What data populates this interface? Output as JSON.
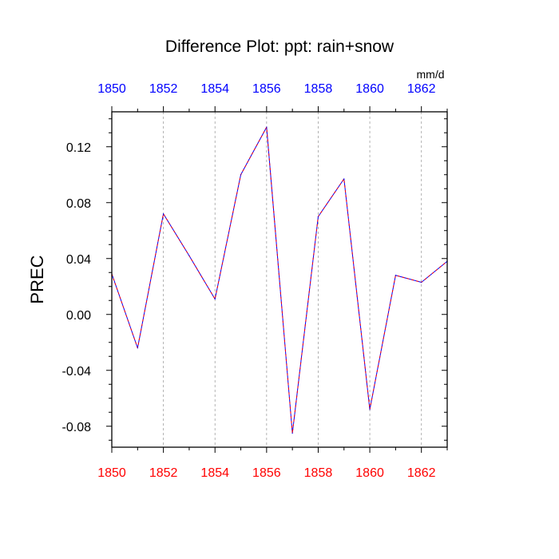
{
  "chart_data": {
    "type": "line",
    "title": "Difference Plot: ppt: rain+snow",
    "units": "mm/d",
    "ylabel": "PREC",
    "xlabel": "",
    "xlim": [
      1850,
      1863
    ],
    "ylim": [
      -0.095,
      0.145
    ],
    "x_ticks": [
      1850,
      1852,
      1854,
      1856,
      1858,
      1860,
      1862
    ],
    "y_ticks": [
      -0.08,
      -0.04,
      0.0,
      0.04,
      0.08,
      0.12
    ],
    "y_tick_labels": [
      "-0.08",
      "-0.04",
      "0.00",
      "0.04",
      "0.08",
      "0.12"
    ],
    "grid": "vertical dashed at major x ticks",
    "colors": {
      "top_axis_labels": "#0000ff",
      "bottom_axis_labels": "#ff0000",
      "line_primary": "#0000ff",
      "line_dash": "#ff0000"
    },
    "series": [
      {
        "x": [
          1850,
          1851,
          1852,
          1853,
          1854,
          1855,
          1856,
          1857,
          1858,
          1859,
          1860,
          1861,
          1862,
          1863
        ],
        "values": [
          0.029,
          -0.024,
          0.072,
          0.042,
          0.011,
          0.1,
          0.134,
          -0.085,
          0.07,
          0.097,
          -0.068,
          0.028,
          0.023,
          0.038
        ]
      }
    ]
  }
}
